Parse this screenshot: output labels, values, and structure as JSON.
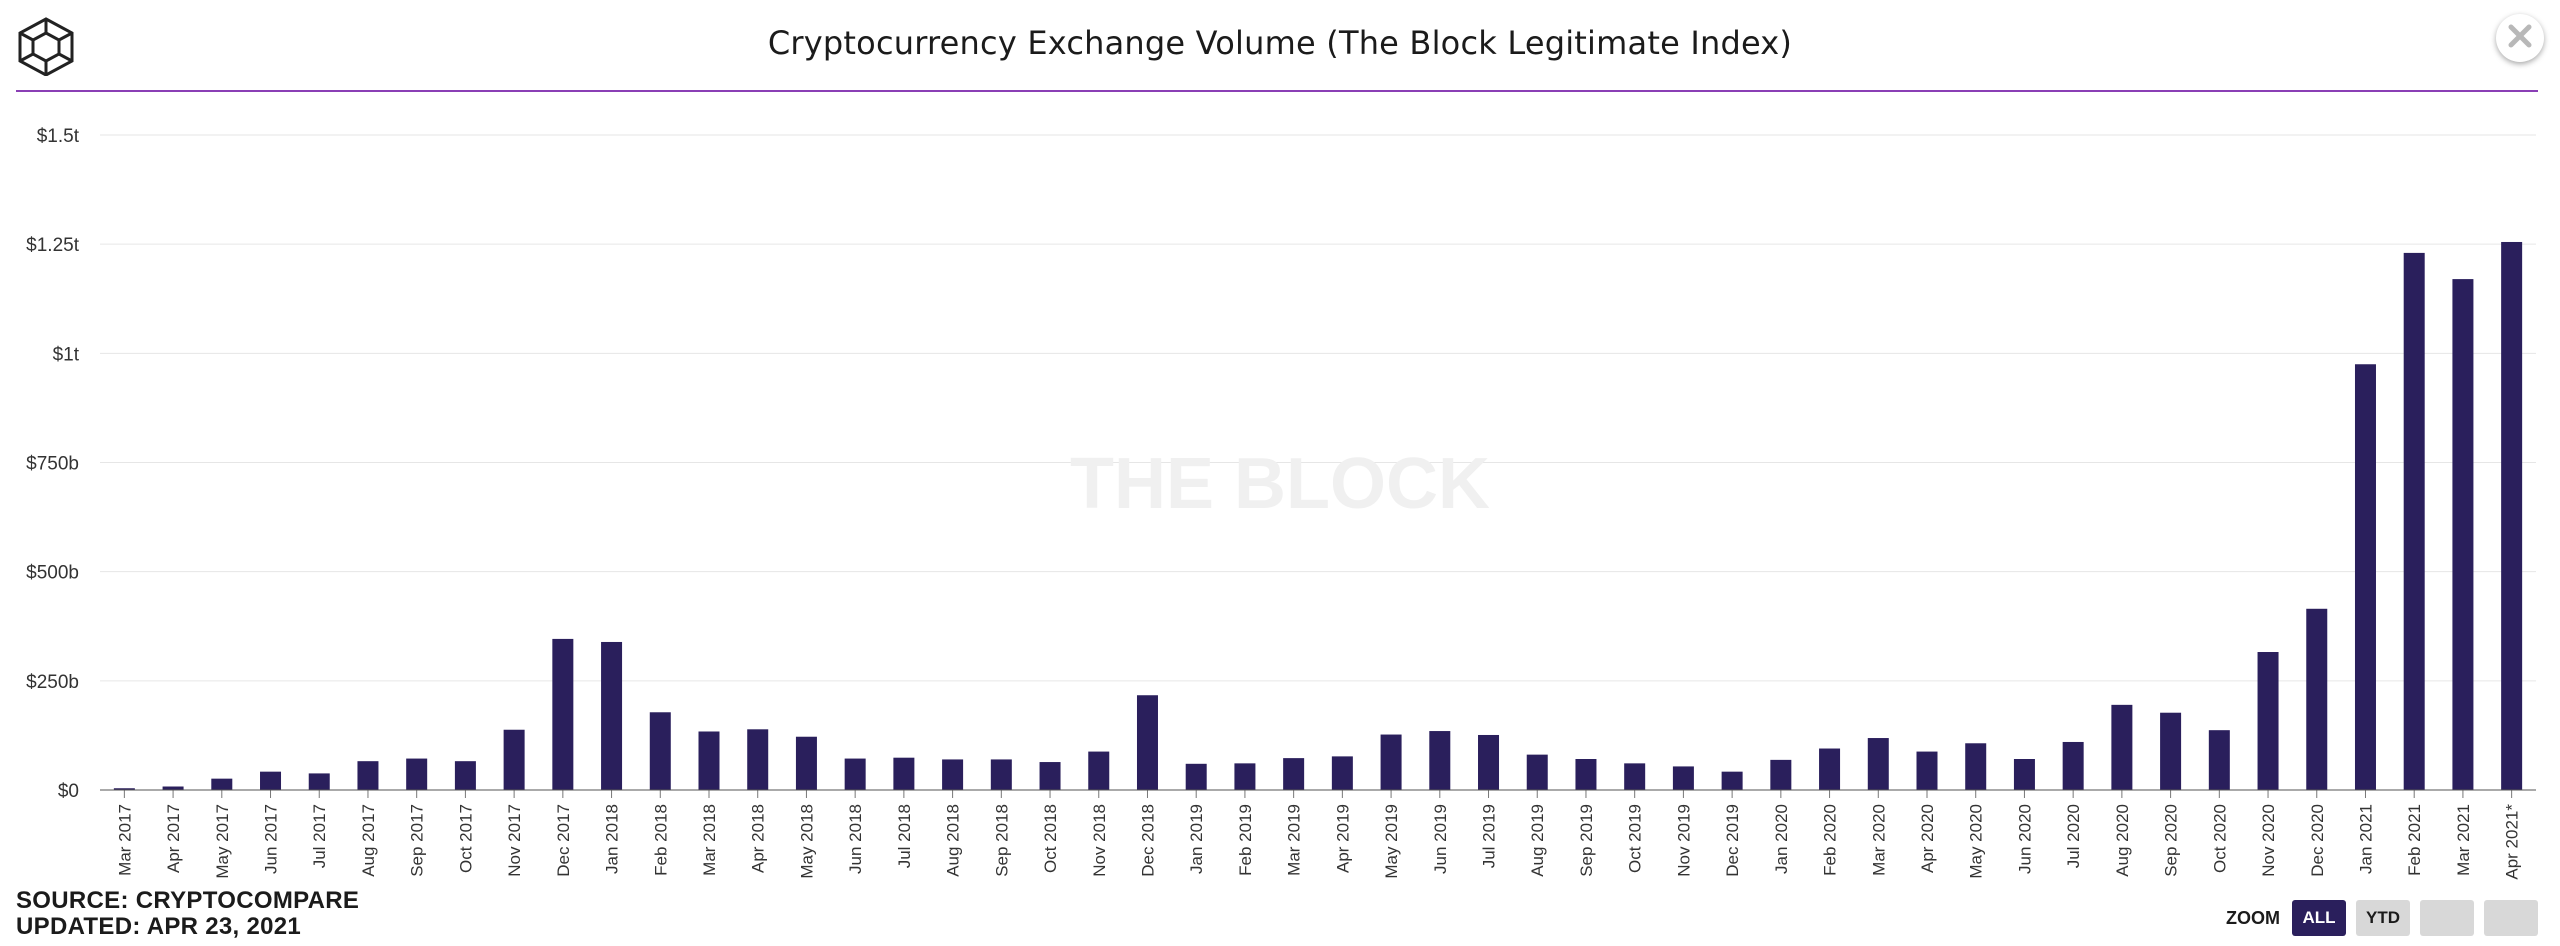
{
  "header": {
    "title": "Cryptocurrency Exchange Volume (The Block Legitimate Index)"
  },
  "watermark": "THE BLOCK",
  "footer": {
    "source": "SOURCE: CRYPTOCOMPARE",
    "updated": "UPDATED: APR 23, 2021"
  },
  "zoom": {
    "label": "ZOOM",
    "buttons": [
      {
        "label": "ALL",
        "active": true
      },
      {
        "label": "YTD",
        "active": false
      },
      {
        "label": "",
        "active": false
      },
      {
        "label": "",
        "active": false
      }
    ]
  },
  "colors": {
    "bar": "#2a1f5c",
    "accent_rule": "#8a3fb5",
    "grid": "#e6e6e6",
    "watermark": "#f0f0f0"
  },
  "icons": {
    "logo": "the-block-cube-logo",
    "close": "close-icon"
  },
  "chart_data": {
    "type": "bar",
    "title": "Cryptocurrency Exchange Volume (The Block Legitimate Index)",
    "xlabel": "",
    "ylabel": "",
    "ylim": [
      0,
      1.5
    ],
    "y_unit": "trillion USD",
    "y_ticks": [
      {
        "value": 0,
        "label": "$0"
      },
      {
        "value": 0.25,
        "label": "$250b"
      },
      {
        "value": 0.5,
        "label": "$500b"
      },
      {
        "value": 0.75,
        "label": "$750b"
      },
      {
        "value": 1.0,
        "label": "$1t"
      },
      {
        "value": 1.25,
        "label": "$1.25t"
      },
      {
        "value": 1.5,
        "label": "$1.5t"
      }
    ],
    "grid": true,
    "legend": "none",
    "categories": [
      "Mar 2017",
      "Apr 2017",
      "May 2017",
      "Jun 2017",
      "Jul 2017",
      "Aug 2017",
      "Sep 2017",
      "Oct 2017",
      "Nov 2017",
      "Dec 2017",
      "Jan 2018",
      "Feb 2018",
      "Mar 2018",
      "Apr 2018",
      "May 2018",
      "Jun 2018",
      "Jul 2018",
      "Aug 2018",
      "Sep 2018",
      "Oct 2018",
      "Nov 2018",
      "Dec 2018",
      "Jan 2019",
      "Feb 2019",
      "Mar 2019",
      "Apr 2019",
      "May 2019",
      "Jun 2019",
      "Jul 2019",
      "Aug 2019",
      "Sep 2019",
      "Oct 2019",
      "Nov 2019",
      "Dec 2019",
      "Jan 2020",
      "Feb 2020",
      "Mar 2020",
      "Apr 2020",
      "May 2020",
      "Jun 2020",
      "Jul 2020",
      "Aug 2020",
      "Sep 2020",
      "Oct 2020",
      "Nov 2020",
      "Dec 2020",
      "Jan 2021",
      "Feb 2021",
      "Mar 2021",
      "Apr 2021*"
    ],
    "values": [
      0.004,
      0.008,
      0.026,
      0.042,
      0.038,
      0.066,
      0.072,
      0.066,
      0.138,
      0.346,
      0.339,
      0.178,
      0.134,
      0.139,
      0.122,
      0.072,
      0.074,
      0.07,
      0.07,
      0.064,
      0.088,
      0.217,
      0.06,
      0.061,
      0.073,
      0.077,
      0.127,
      0.135,
      0.126,
      0.081,
      0.071,
      0.061,
      0.054,
      0.042,
      0.069,
      0.095,
      0.119,
      0.088,
      0.107,
      0.071,
      0.11,
      0.195,
      0.177,
      0.137,
      0.316,
      0.415,
      0.975,
      1.23,
      1.17,
      1.255
    ]
  }
}
